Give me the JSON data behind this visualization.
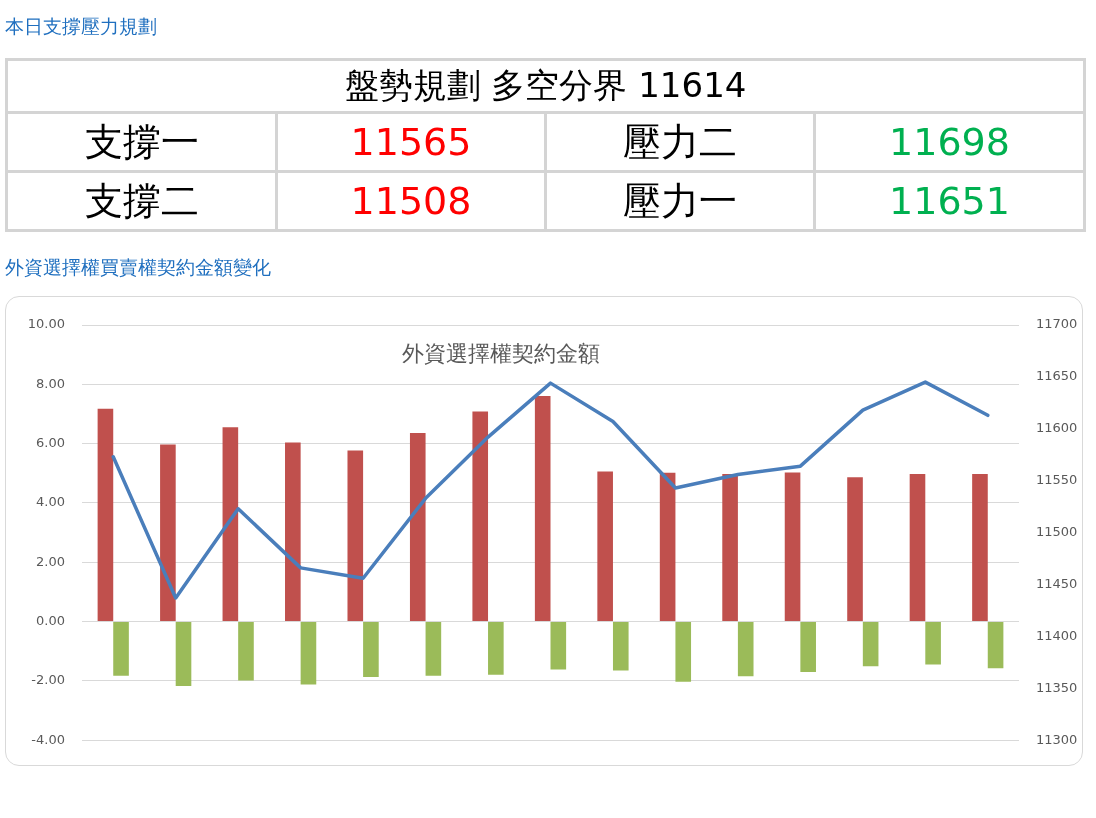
{
  "chart_data": [
    {
      "type": "other",
      "title": "本日支撐壓力規劃",
      "subtitle": "盤勢規劃 多空分界 11614",
      "categories": [
        "支撐一",
        "壓力二",
        "支撐二",
        "壓力一"
      ],
      "values": [
        11565,
        11698,
        11508,
        11651
      ],
      "colors": [
        "#ff0000",
        "#00b050",
        "#ff0000",
        "#00b050"
      ],
      "data_labels": true
    },
    {
      "type": "bar",
      "title": "外資選擇權買賣權契約金額變化",
      "subtitle": "外資選擇權契約金額",
      "categories": [
        null,
        null,
        null,
        null,
        null,
        null,
        null,
        null,
        null,
        null,
        null,
        null,
        null,
        null,
        null
      ],
      "series": [
        {
          "type": "bar",
          "color": "#c0504d",
          "values": [
            7.18,
            5.97,
            6.55,
            6.04,
            5.77,
            6.36,
            7.08,
            7.61,
            5.06,
            5.02,
            4.98,
            5.03,
            4.87,
            4.98,
            4.98
          ]
        },
        {
          "type": "bar",
          "color": "#9bbb59",
          "values": [
            -1.83,
            -2.17,
            -1.99,
            -2.12,
            -1.87,
            -1.83,
            -1.79,
            -1.62,
            -1.65,
            -2.03,
            -1.84,
            -1.7,
            -1.51,
            -1.45,
            -1.57
          ]
        },
        {
          "type": "line",
          "axis": "y2",
          "color": "#4a7ebb",
          "values": [
            11573,
            11437,
            11523,
            11466,
            11456,
            11533,
            11592,
            11644,
            11607,
            11543,
            11556,
            11564,
            11618,
            11645,
            11613
          ]
        }
      ],
      "ylim": [
        -4,
        10
      ],
      "yticks": [
        {
          "value": -4,
          "label": "-4.00"
        },
        {
          "value": -2,
          "label": "-2.00"
        },
        {
          "value": 0,
          "label": "0.00"
        },
        {
          "value": 2,
          "label": "2.00"
        },
        {
          "value": 4,
          "label": "4.00"
        },
        {
          "value": 6,
          "label": "6.00"
        },
        {
          "value": 8,
          "label": "8.00"
        },
        {
          "value": 10,
          "label": "10.00"
        }
      ],
      "y2lim": [
        11300,
        11700
      ],
      "y2ticks": [
        11300,
        11350,
        11400,
        11450,
        11500,
        11550,
        11600,
        11650,
        11700
      ],
      "grid": "y"
    }
  ]
}
